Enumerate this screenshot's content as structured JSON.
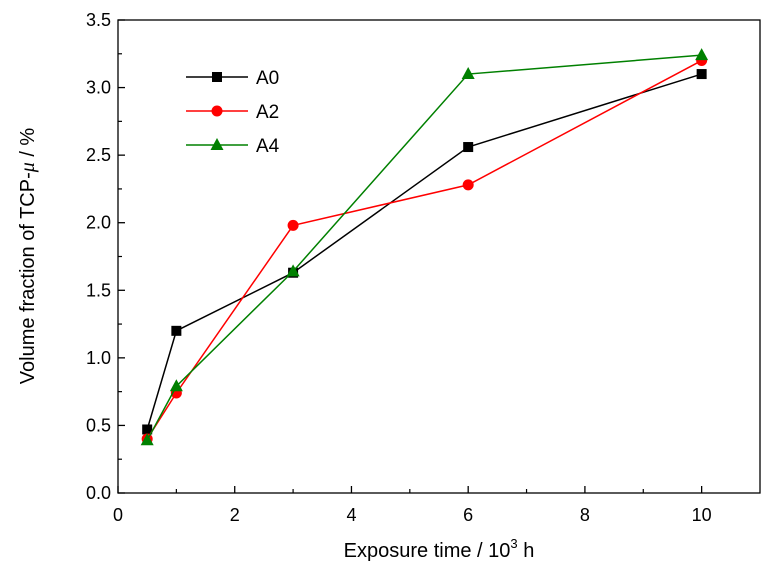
{
  "chart_data": {
    "type": "line",
    "title": "",
    "xlabel": {
      "prefix": "Exposure time / 10",
      "sup": "3",
      "suffix": " h"
    },
    "ylabel": {
      "prefix": "Volume fraction of TCP-",
      "symbol": "μ",
      "suffix": " / %"
    },
    "xlim": [
      0,
      11
    ],
    "ylim": [
      0,
      3.5
    ],
    "xticks": [
      "0",
      "2",
      "4",
      "6",
      "8",
      "10"
    ],
    "yticks": [
      "0.0",
      "0.5",
      "1.0",
      "1.5",
      "2.0",
      "2.5",
      "3.0",
      "3.5"
    ],
    "legend_position": "top-left",
    "grid": false,
    "series": [
      {
        "name": "A0",
        "color": "#000000",
        "marker": "square",
        "x": [
          0.5,
          1,
          3,
          6,
          10
        ],
        "y": [
          0.47,
          1.2,
          1.63,
          2.56,
          3.1
        ]
      },
      {
        "name": "A2",
        "color": "#ff0000",
        "marker": "circle",
        "x": [
          0.5,
          1,
          3,
          6,
          10
        ],
        "y": [
          0.4,
          0.74,
          1.98,
          2.28,
          3.2
        ]
      },
      {
        "name": "A4",
        "color": "#008000",
        "marker": "triangle",
        "x": [
          0.5,
          1,
          3,
          6,
          10
        ],
        "y": [
          0.39,
          0.79,
          1.64,
          3.1,
          3.24
        ]
      }
    ]
  }
}
